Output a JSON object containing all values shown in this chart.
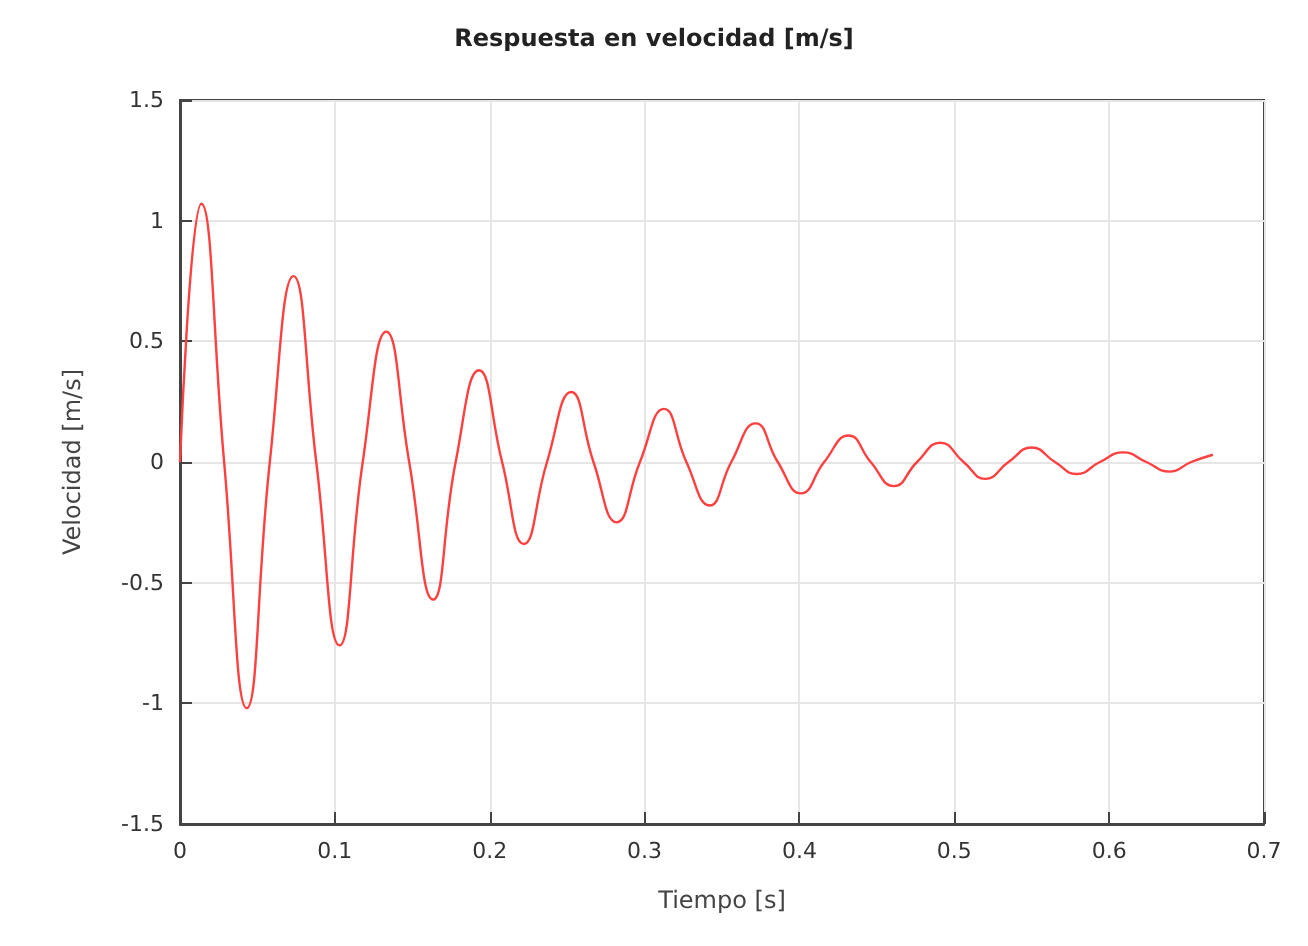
{
  "chart_data": {
    "type": "line",
    "title": "Respuesta en velocidad [m/s]",
    "xlabel": "Tiempo [s]",
    "ylabel": "Velocidad [m/s]",
    "xlim": [
      0,
      0.7
    ],
    "xticks": [
      0,
      0.1,
      0.2,
      0.3,
      0.4,
      0.5,
      0.6,
      0.7
    ],
    "ylim": [
      -1.5,
      1.5
    ],
    "yticks": [
      -1.5,
      -1,
      -0.5,
      0,
      0.5,
      1,
      1.5
    ],
    "grid": true,
    "marker": "none",
    "line_style": "solid",
    "series": [
      {
        "color": "#ff4040",
        "x": [
          0,
          0.0138,
          0.0285,
          0.0431,
          0.058,
          0.0733,
          0.088,
          0.103,
          0.118,
          0.1332,
          0.148,
          0.1634,
          0.178,
          0.1931,
          0.208,
          0.222,
          0.237,
          0.2526,
          0.267,
          0.282,
          0.297,
          0.3125,
          0.327,
          0.342,
          0.356,
          0.3717,
          0.386,
          0.401,
          0.416,
          0.4318,
          0.446,
          0.461,
          0.476,
          0.491,
          0.506,
          0.52,
          0.535,
          0.55,
          0.565,
          0.579,
          0.594,
          0.609,
          0.624,
          0.639,
          0.653,
          0.667
        ],
        "values": [
          0,
          1.07,
          0,
          -1.02,
          0,
          0.77,
          0,
          -0.76,
          0,
          0.54,
          0,
          -0.57,
          0,
          0.38,
          0,
          -0.34,
          0,
          0.29,
          0,
          -0.25,
          0,
          0.22,
          0,
          -0.18,
          0,
          0.16,
          0,
          -0.13,
          0,
          0.11,
          0,
          -0.1,
          0,
          0.08,
          0,
          -0.07,
          0,
          0.06,
          0,
          -0.05,
          0,
          0.04,
          0,
          -0.04,
          0,
          0.03
        ]
      }
    ]
  }
}
